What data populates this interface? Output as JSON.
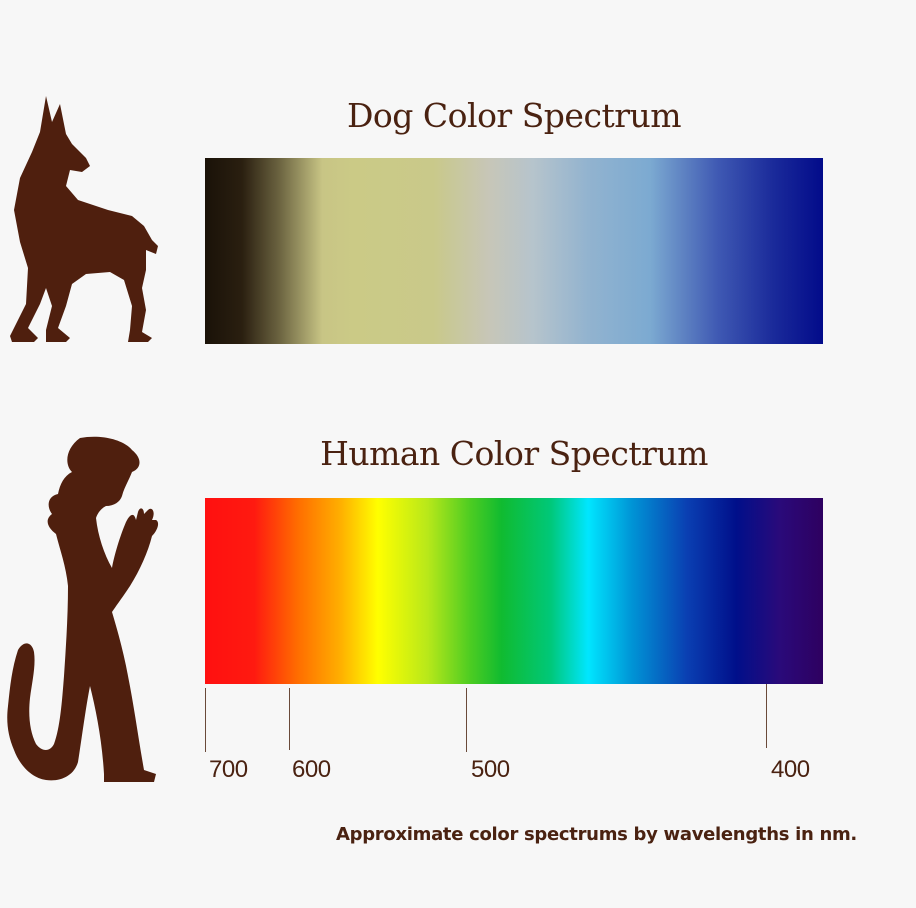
{
  "titles": {
    "dog": "Dog Color Spectrum",
    "human": "Human Color Spectrum"
  },
  "axis": {
    "ticks": [
      {
        "label": "700",
        "value": 700
      },
      {
        "label": "600",
        "value": 600
      },
      {
        "label": "500",
        "value": 500
      },
      {
        "label": "400",
        "value": 400
      }
    ]
  },
  "caption": "Approximate color spectrums by wavelengths in nm.",
  "colors": {
    "text": "#4a2211",
    "silhouette": "#4f1f0e",
    "background": "#f7f7f7"
  },
  "icons": {
    "dog": "dog-silhouette-icon",
    "human": "human-silhouette-icon"
  }
}
